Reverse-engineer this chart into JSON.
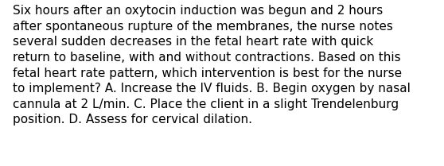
{
  "lines": [
    "Six hours after an oxytocin induction was begun and 2 hours",
    "after spontaneous rupture of the membranes, the nurse notes",
    "several sudden decreases in the fetal heart rate with quick",
    "return to baseline, with and without contractions. Based on this",
    "fetal heart rate pattern, which intervention is best for the nurse",
    "to implement? A. Increase the IV fluids. B. Begin oxygen by nasal",
    "cannula at 2 L/min. C. Place the client in a slight Trendelenburg",
    "position. D. Assess for cervical dilation."
  ],
  "background_color": "#ffffff",
  "text_color": "#000000",
  "font_size": 11.0,
  "font_family": "DejaVu Sans"
}
